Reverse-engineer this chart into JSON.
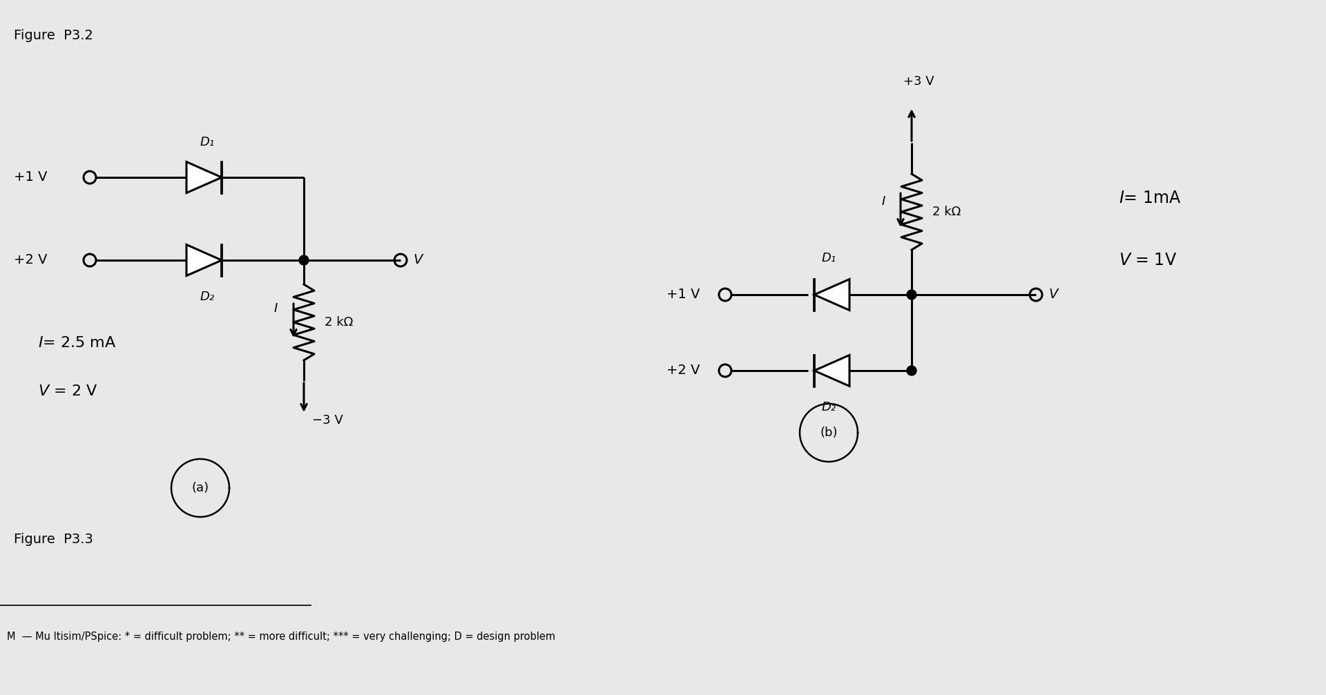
{
  "bg_color": "#e8e8e8",
  "title_a": "Figure  P3.2",
  "title_b": "Figure  P3.3",
  "footer": "M  — Mu ltisim/PSpice: * = difficult problem; ** = more difficult; *** = very challenging; D = design problem",
  "circuit_a": {
    "v1_label": "+1 V",
    "v2_label": "+2 V",
    "d1_label": "D₁",
    "d2_label": "D₂",
    "r_label": "2 kΩ",
    "i_label": "I",
    "vminus_label": "−3 V",
    "v_out_label": "V",
    "result_i": "I= 2.5 mA",
    "result_v": "V = 2 V",
    "label_a": "(a)"
  },
  "circuit_b": {
    "vplus_label": "+3 V",
    "v1_label": "+1 V",
    "v2_label": "+2 V",
    "d1_label": "D₁",
    "d2_label": "D₂",
    "r_label": "2 kΩ",
    "i_label": "I",
    "v_out_label": "V",
    "result_i": "I= 1mA",
    "result_v": "V = 1V",
    "label_b": "(b)"
  }
}
